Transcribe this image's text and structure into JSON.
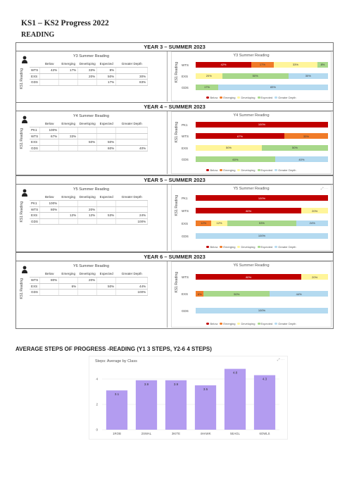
{
  "doc": {
    "title": "KS1 – KS2 Progress 2022",
    "subject": "READING"
  },
  "colors": {
    "below": "#c00000",
    "emerging": "#f07b28",
    "developing": "#fff59a",
    "expected": "#a8d88a",
    "greater_depth": "#b4daf0",
    "steps_bar": "#b39cf0"
  },
  "table_columns": [
    "Below",
    "Emerging",
    "Developing",
    "Expected",
    "Greater Depth"
  ],
  "legend": [
    "Below",
    "Emerging",
    "Developing",
    "Expected",
    "Greater Depth"
  ],
  "ks1_axis_label": "KS1 Reading",
  "years": [
    {
      "header": "YEAR 3 – SUMMER 2023",
      "table_title": "Y3 Summer Reading",
      "chart_title": "Y3 Summer Reading",
      "rows": [
        {
          "label": "WTS",
          "cells": [
            "42%",
            "17%",
            "33%",
            "8%",
            ""
          ],
          "segments": [
            42,
            17,
            33,
            8,
            0
          ]
        },
        {
          "label": "EXS",
          "cells": [
            "",
            "",
            "20%",
            "50%",
            "30%"
          ],
          "segments": [
            0,
            0,
            20,
            50,
            30
          ]
        },
        {
          "label": "GDS",
          "cells": [
            "",
            "",
            "",
            "17%",
            "83%"
          ],
          "segments": [
            0,
            0,
            0,
            17,
            83
          ]
        }
      ]
    },
    {
      "header": "YEAR 4 – SUMMER 2023",
      "table_title": "Y4 Summer Reading",
      "chart_title": "Y4 Summer Reading",
      "rows": [
        {
          "label": "PK1",
          "cells": [
            "100%",
            "",
            "",
            "",
            ""
          ],
          "segments": [
            100,
            0,
            0,
            0,
            0
          ]
        },
        {
          "label": "WTS",
          "cells": [
            "67%",
            "33%",
            "",
            "",
            ""
          ],
          "segments": [
            67,
            33,
            0,
            0,
            0
          ]
        },
        {
          "label": "EXS",
          "cells": [
            "",
            "",
            "50%",
            "50%",
            ""
          ],
          "segments": [
            0,
            0,
            50,
            50,
            0
          ]
        },
        {
          "label": "GDS",
          "cells": [
            "",
            "",
            "",
            "60%",
            "40%"
          ],
          "segments": [
            0,
            0,
            0,
            60,
            40
          ]
        }
      ]
    },
    {
      "header": "YEAR 5 – SUMMER 2023",
      "table_title": "Y5 Summer Reading",
      "chart_title": "Y5 Summer Reading",
      "rows": [
        {
          "label": "PK1",
          "cells": [
            "100%",
            "",
            "",
            "",
            ""
          ],
          "segments": [
            100,
            0,
            0,
            0,
            0
          ]
        },
        {
          "label": "WTS",
          "cells": [
            "80%",
            "",
            "20%",
            "",
            ""
          ],
          "segments": [
            80,
            0,
            20,
            0,
            0
          ]
        },
        {
          "label": "EXS",
          "cells": [
            "",
            "12%",
            "12%",
            "53%",
            "24%"
          ],
          "segments": [
            0,
            12,
            12,
            53,
            24
          ]
        },
        {
          "label": "GDS",
          "cells": [
            "",
            "",
            "",
            "",
            "100%"
          ],
          "segments": [
            0,
            0,
            0,
            0,
            100
          ]
        }
      ]
    },
    {
      "header": "YEAR 6 – SUMMER 2023",
      "table_title": "Y6 Summer Reading",
      "chart_title": "Y6 Summer Reading",
      "rows": [
        {
          "label": "WTS",
          "cells": [
            "80%",
            "",
            "20%",
            "",
            ""
          ],
          "segments": [
            80,
            0,
            20,
            0,
            0
          ]
        },
        {
          "label": "EXS",
          "cells": [
            "",
            "6%",
            "",
            "50%",
            "44%"
          ],
          "segments": [
            0,
            6,
            0,
            50,
            44
          ]
        },
        {
          "label": "GDS",
          "cells": [
            "",
            "",
            "",
            "",
            "100%"
          ],
          "segments": [
            0,
            0,
            0,
            0,
            100
          ]
        }
      ]
    }
  ],
  "steps": {
    "heading": "AVERAGE STEPS OF PROGRESS -READING (Y1 3 STEPS, Y2-6 4 STEPS)",
    "chart_title": "Steps: Average by Class"
  },
  "chart_data": {
    "type": "bar",
    "title": "Steps: Average by Class",
    "categories": [
      "1ROB",
      "2SWAL",
      "3KITE",
      "4HAWK",
      "5EAGL",
      "6OWLS"
    ],
    "values": [
      3.1,
      3.9,
      3.9,
      3.5,
      4.8,
      4.3
    ],
    "ylim": [
      0,
      5
    ],
    "yticks": [
      0,
      2,
      4
    ],
    "grid": true
  }
}
